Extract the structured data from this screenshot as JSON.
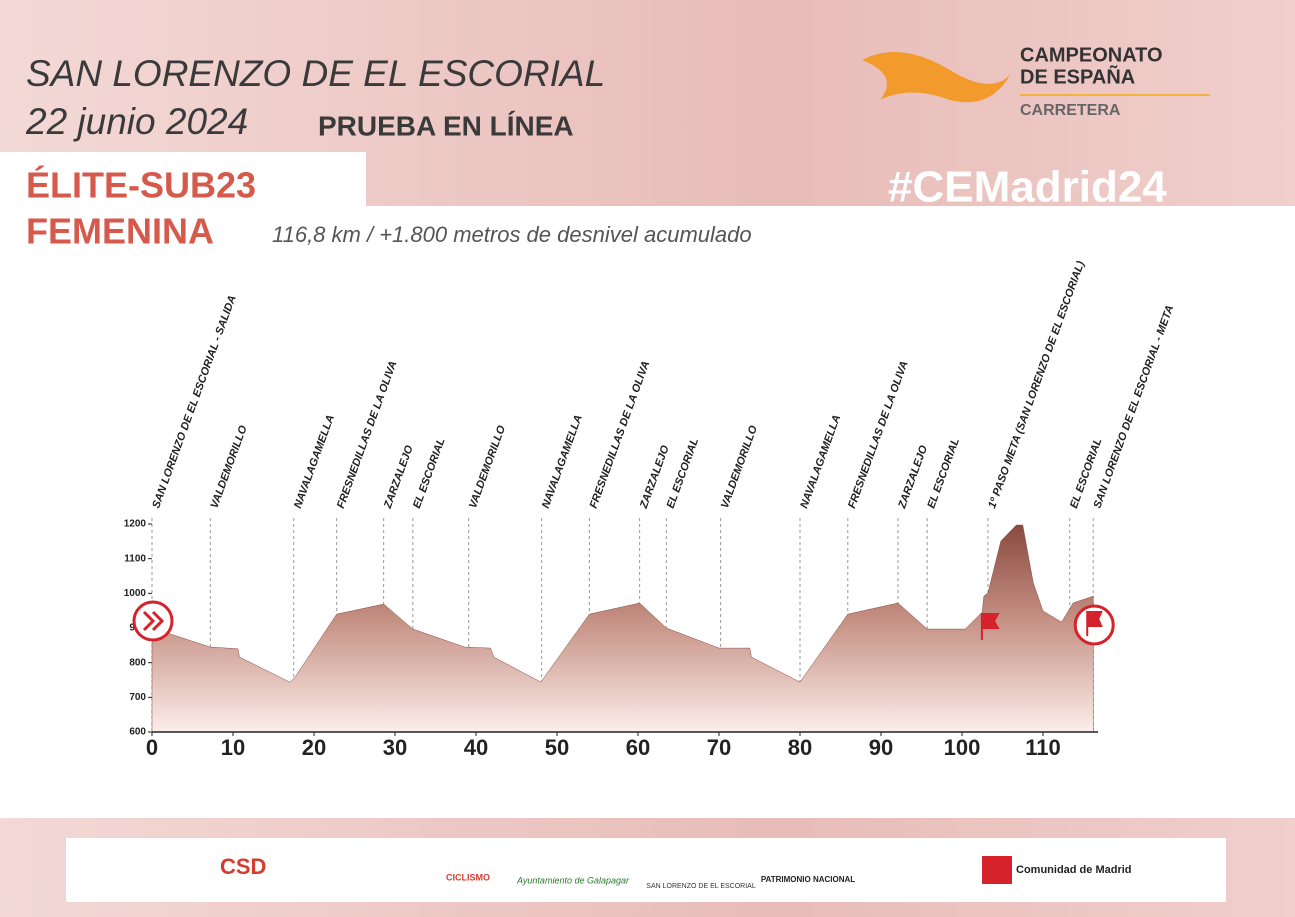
{
  "header": {
    "title": "SAN LORENZO DE EL ESCORIAL",
    "date": "22 junio 2024",
    "race": "PRUEBA EN LÍNEA",
    "category_1": "ÉLITE-SUB23",
    "category_2": "FEMENINA",
    "subtitle": "116,8 km / +1.800 metros de desnivel acumulado",
    "brand_1": "CAMPEONATO",
    "brand_2": "DE ESPAÑA",
    "brand_3": "CARRETERA",
    "hashtag": "#CEMadrid24"
  },
  "sponsors": [
    "CICLISMO",
    "Ayuntamiento de Galapagar",
    "SAN LORENZO DE EL ESCORIAL",
    "PATRIMONIO NACIONAL",
    "Comunidad de Madrid"
  ],
  "chart_data": {
    "type": "area",
    "color": "#8a4a40",
    "x": [
      0,
      7.2,
      10.6,
      10.8,
      17,
      17.6,
      22.8,
      28.6,
      32.2,
      38.6,
      41.8,
      42.2,
      48,
      54,
      60.2,
      63.5,
      70,
      73.8,
      74,
      80,
      85.9,
      92.1,
      95.7,
      100.4,
      102.5,
      102.7,
      103.2,
      104.8,
      106.7,
      107.5,
      108.8,
      110,
      112.3,
      113.7,
      116.2
    ],
    "values": [
      900,
      845,
      840,
      816,
      744,
      756,
      940,
      969,
      897,
      845,
      842,
      816,
      744,
      940,
      972,
      900,
      842,
      842,
      816,
      744,
      940,
      972,
      897,
      897,
      946,
      992,
      1001,
      1151,
      1197,
      1197,
      1030,
      949,
      917,
      972,
      992
    ],
    "xlim": [
      0,
      116.8
    ],
    "ylim": [
      600,
      1200
    ],
    "xticks": [
      0,
      10,
      20,
      30,
      40,
      50,
      60,
      70,
      80,
      90,
      100,
      110
    ],
    "yticks": [
      600,
      700,
      800,
      900,
      1000,
      1100,
      1200
    ],
    "waypoints": [
      {
        "km": 0,
        "label": "SAN LORENZO DE EL ESCORIAL - SALIDA"
      },
      {
        "km": 7.2,
        "label": "VALDEMORILLO"
      },
      {
        "km": 17.5,
        "label": "NAVALAGAMELLA"
      },
      {
        "km": 22.8,
        "label": "FRESNEDILLAS DE LA OLIVA"
      },
      {
        "km": 28.6,
        "label": "ZARZALEJO"
      },
      {
        "km": 32.2,
        "label": "EL ESCORIAL"
      },
      {
        "km": 39.1,
        "label": "VALDEMORILLO"
      },
      {
        "km": 48.1,
        "label": "NAVALAGAMELLA"
      },
      {
        "km": 54,
        "label": "FRESNEDILLAS DE LA OLIVA"
      },
      {
        "km": 60.2,
        "label": "ZARZALEJO"
      },
      {
        "km": 63.5,
        "label": "EL ESCORIAL"
      },
      {
        "km": 70.2,
        "label": "VALDEMORILLO"
      },
      {
        "km": 80,
        "label": "NAVALAGAMELLA"
      },
      {
        "km": 85.9,
        "label": "FRESNEDILLAS DE LA OLIVA"
      },
      {
        "km": 92.1,
        "label": "ZARZALEJO"
      },
      {
        "km": 95.7,
        "label": "EL ESCORIAL"
      },
      {
        "km": 103.2,
        "label": "1º PASO META (SAN LORENZO DE EL ESCORIAL)"
      },
      {
        "km": 113.3,
        "label": "EL ESCORIAL"
      },
      {
        "km": 116.2,
        "label": "SAN LORENZO DE EL ESCORIAL - META"
      }
    ]
  }
}
